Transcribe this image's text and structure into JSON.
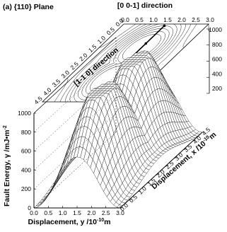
{
  "title": "(a) {110} Plane",
  "top_axis": {
    "label": "[0 0-1] direction",
    "ticks": [
      "0.0",
      "0.5",
      "1.0",
      "1.5",
      "2.0",
      "2.5",
      "3.0"
    ]
  },
  "diag_axis": {
    "label": "[1-1 0] direction",
    "ticks": [
      "4.5",
      "4.0",
      "3.5",
      "3.0",
      "2.5",
      "2.0",
      "1.5",
      "1.0",
      "0.5",
      "0.0"
    ]
  },
  "right_axis": {
    "ticks": [
      "1000",
      "800",
      "600",
      "400",
      "200"
    ]
  },
  "z_axis": {
    "label_main": "Fault Energy, γ /mJ•m",
    "label_sup": "-2",
    "ticks": [
      "1000",
      "800",
      "600",
      "400",
      "200",
      "0"
    ]
  },
  "y_axis": {
    "label_main": "Displacement, y  /10",
    "label_sup": "-10",
    "label_unit": "m",
    "ticks": [
      "0.0",
      "0.5",
      "1.0",
      "1.5",
      "2.0",
      "2.5",
      "3.0"
    ]
  },
  "x_axis": {
    "label_main": "Displacement, x /10",
    "label_sup": "-10",
    "label_unit": "m",
    "ticks": [
      "0.0",
      "0.5",
      "1.0",
      "1.5",
      "2.0",
      "2.5",
      "3.0",
      "3.5",
      "4.0",
      "4.5"
    ]
  },
  "chart_data": {
    "type": "surface",
    "title": "(a) {110} Plane",
    "x_label": "Displacement, x /10^-10 m",
    "y_label": "Displacement, y /10^-10 m",
    "z_label": "Fault Energy, γ /mJ•m^-2",
    "xlim": [
      0,
      4.5
    ],
    "ylim": [
      0,
      3.0
    ],
    "zlim": [
      0,
      1000
    ],
    "contour_axes": [
      "[0 0-1] direction",
      "[1-1 0] direction"
    ]
  }
}
